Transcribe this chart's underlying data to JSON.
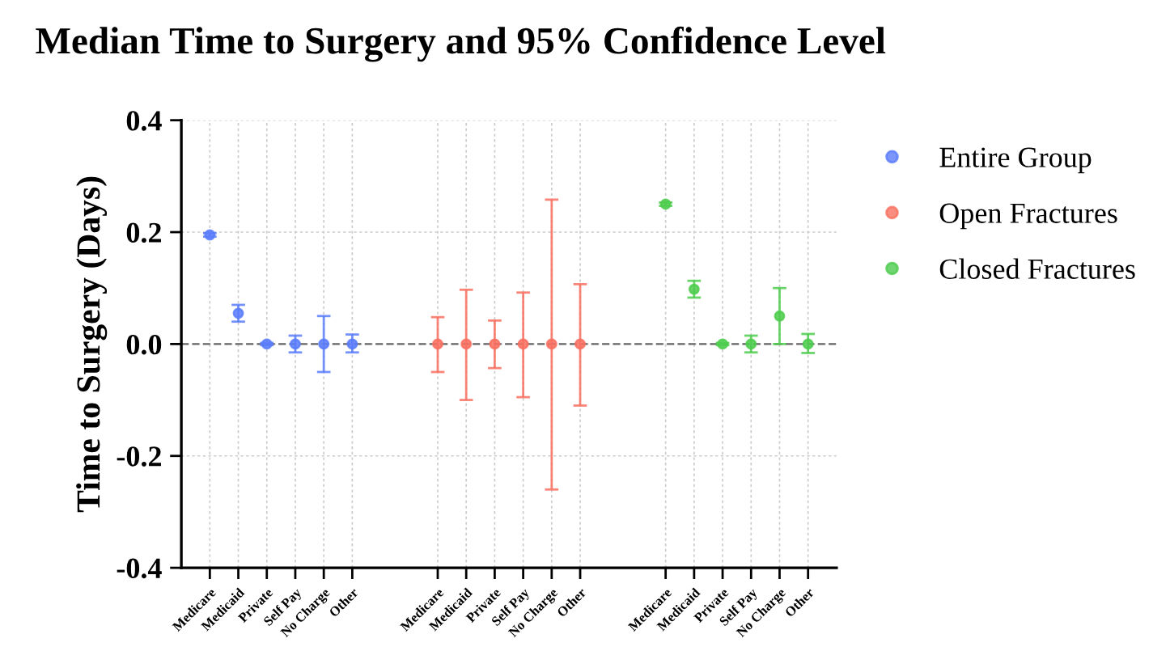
{
  "chart_data": {
    "type": "scatter",
    "title": "Median Time to Surgery and 95% Confidence Level",
    "ylabel": "Time to Surgery (Days)",
    "categories": [
      "Medicare",
      "Medicaid",
      "Private",
      "Self Pay",
      "No Charge",
      "Other",
      null,
      null,
      "Medicare",
      "Medicaid",
      "Private",
      "Self Pay",
      "No Charge",
      "Other",
      null,
      null,
      "Medicare",
      "Medicaid",
      "Private",
      "Self Pay",
      "No Charge",
      "Other"
    ],
    "series": [
      {
        "name": "Entire Group",
        "color": "#5b7cfa",
        "values": [
          0.195,
          0.055,
          0,
          0,
          0,
          0,
          null,
          null,
          null,
          null,
          null,
          null,
          null,
          null,
          null,
          null,
          null,
          null,
          null,
          null,
          null,
          null
        ],
        "errors": [
          [
            0.192,
            0.198
          ],
          [
            0.04,
            0.07
          ],
          [
            -0.002,
            0.002
          ],
          [
            -0.015,
            0.015
          ],
          [
            -0.05,
            0.05
          ],
          [
            -0.015,
            0.017
          ],
          null,
          null,
          null,
          null,
          null,
          null,
          null,
          null,
          null,
          null,
          null,
          null,
          null,
          null,
          null,
          null
        ]
      },
      {
        "name": "Open Fractures",
        "color": "#f87060",
        "values": [
          null,
          null,
          null,
          null,
          null,
          null,
          null,
          null,
          0,
          0,
          0,
          0,
          0,
          0,
          null,
          null,
          null,
          null,
          null,
          null,
          null,
          null
        ],
        "errors": [
          null,
          null,
          null,
          null,
          null,
          null,
          null,
          null,
          [
            -0.05,
            0.048
          ],
          [
            -0.1,
            0.097
          ],
          [
            -0.043,
            0.042
          ],
          [
            -0.095,
            0.092
          ],
          [
            -0.26,
            0.258
          ],
          [
            -0.11,
            0.107
          ],
          null,
          null,
          null,
          null,
          null,
          null,
          null,
          null
        ]
      },
      {
        "name": "Closed Fractures",
        "color": "#4dcc4d",
        "values": [
          null,
          null,
          null,
          null,
          null,
          null,
          null,
          null,
          null,
          null,
          null,
          null,
          null,
          null,
          null,
          null,
          0.25,
          0.098,
          0,
          0,
          0.05,
          0
        ],
        "errors": [
          null,
          null,
          null,
          null,
          null,
          null,
          null,
          null,
          null,
          null,
          null,
          null,
          null,
          null,
          null,
          null,
          [
            0.247,
            0.253
          ],
          [
            0.083,
            0.113
          ],
          [
            -0.002,
            0.002
          ],
          [
            -0.015,
            0.015
          ],
          [
            0,
            0.1
          ],
          [
            -0.016,
            0.018
          ]
        ]
      }
    ],
    "ylim": [
      -0.4,
      0.4
    ],
    "yticks": [
      {
        "value": -0.4,
        "label": "-0.4"
      },
      {
        "value": -0.2,
        "label": "-0.2"
      },
      {
        "value": 0,
        "label": "0.0"
      },
      {
        "value": 0.2,
        "label": "0.2"
      },
      {
        "value": 0.4,
        "label": "0.4"
      }
    ],
    "ref_lines": [
      {
        "axis": "y",
        "value": 0,
        "color": "#666666",
        "line_style": "dashed"
      }
    ],
    "grid": true,
    "legend": "top right",
    "marker": "circle"
  }
}
